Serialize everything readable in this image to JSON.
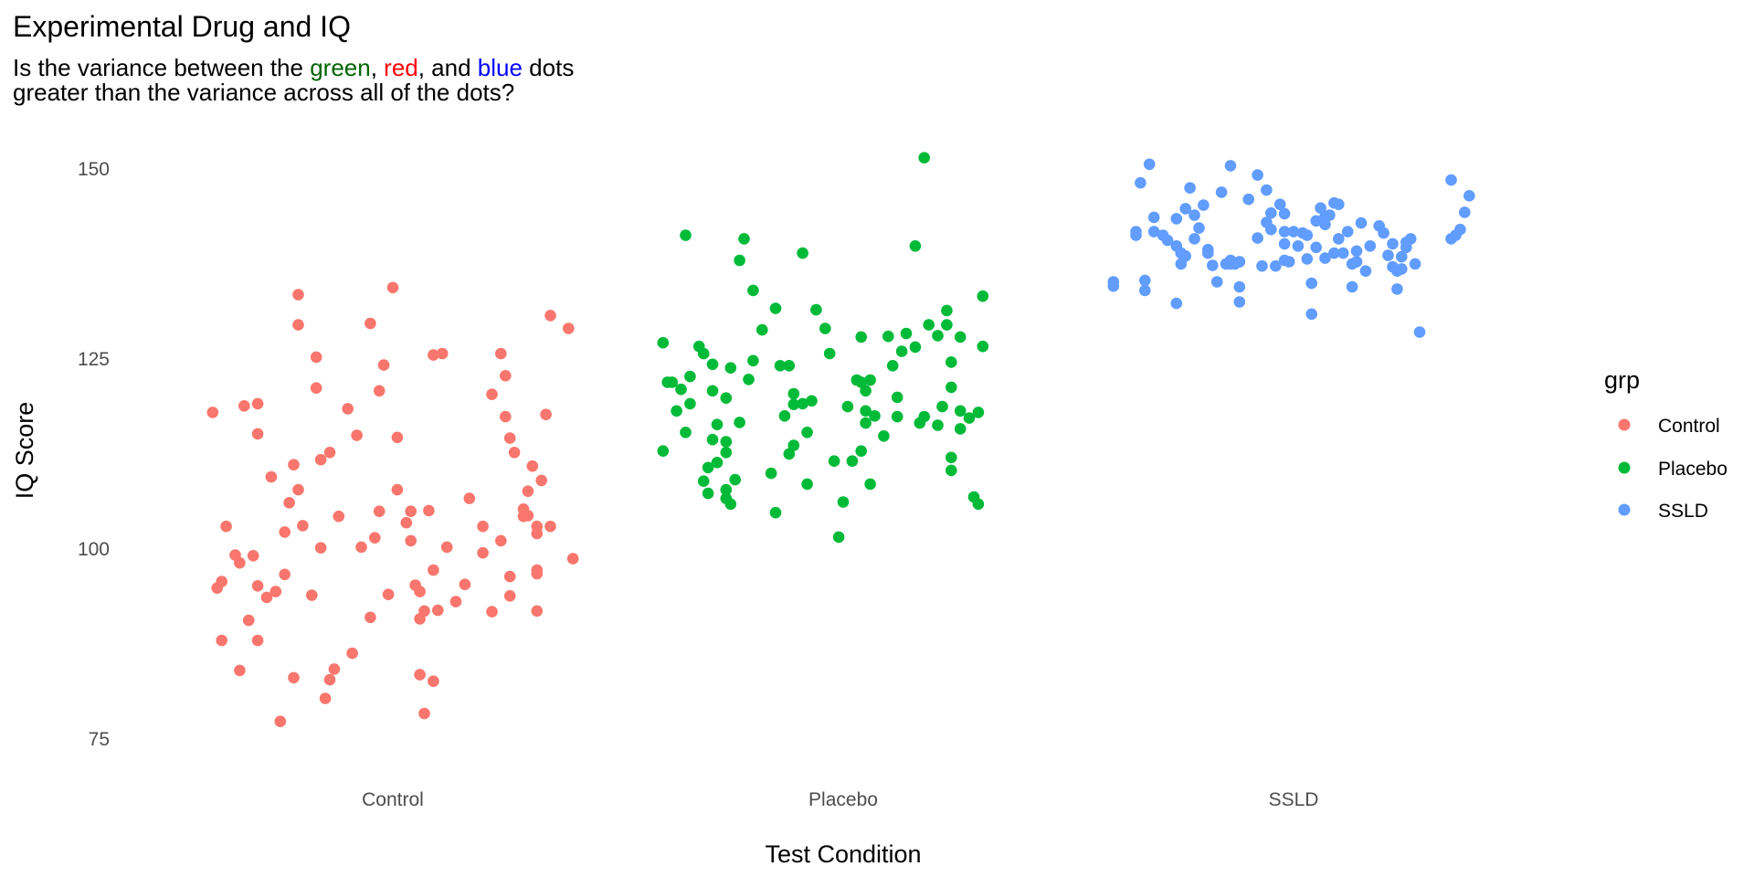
{
  "chart_data": {
    "type": "scatter",
    "title": "Experimental Drug and IQ",
    "subtitle": {
      "line1": {
        "p1": "Is the variance between the ",
        "green": "green",
        "p2": ", ",
        "red": "red",
        "p3": ", and ",
        "blue": "blue",
        "p4": " dots"
      },
      "line2": "greater than the variance across all of the dots?"
    },
    "xlabel": "Test Condition",
    "ylabel": "IQ Score",
    "categories": [
      "Control",
      "Placebo",
      "SSLD"
    ],
    "yticks": [
      "75",
      "100",
      "125",
      "150"
    ],
    "ylim": [
      70,
      153.5
    ],
    "legend": {
      "title": "grp",
      "position": "right"
    },
    "grid": false,
    "colors": {
      "Control": "#F8766D",
      "Placebo": "#00BA38",
      "SSLD": "#619CFF",
      "subtitle_green": "#006400",
      "subtitle_red": "#FF0000",
      "subtitle_blue": "#0000FF"
    },
    "series": [
      {
        "name": "Control",
        "points": [
          [
            -0.4,
            116.8
          ],
          [
            -0.39,
            92.3
          ],
          [
            -0.38,
            93.2
          ],
          [
            -0.38,
            85.0
          ],
          [
            -0.37,
            100.9
          ],
          [
            -0.35,
            96.9
          ],
          [
            -0.34,
            80.8
          ],
          [
            -0.34,
            95.8
          ],
          [
            -0.33,
            117.7
          ],
          [
            -0.32,
            87.8
          ],
          [
            -0.31,
            96.8
          ],
          [
            -0.3,
            118.0
          ],
          [
            -0.3,
            113.8
          ],
          [
            -0.3,
            92.6
          ],
          [
            -0.3,
            85.0
          ],
          [
            -0.28,
            91.0
          ],
          [
            -0.27,
            107.8
          ],
          [
            -0.26,
            91.8
          ],
          [
            -0.25,
            73.7
          ],
          [
            -0.24,
            94.2
          ],
          [
            -0.24,
            100.1
          ],
          [
            -0.23,
            104.2
          ],
          [
            -0.22,
            109.5
          ],
          [
            -0.22,
            79.8
          ],
          [
            -0.21,
            133.2
          ],
          [
            -0.21,
            129.0
          ],
          [
            -0.21,
            106.0
          ],
          [
            -0.2,
            101.0
          ],
          [
            -0.18,
            91.3
          ],
          [
            -0.17,
            120.2
          ],
          [
            -0.17,
            124.5
          ],
          [
            -0.16,
            110.2
          ],
          [
            -0.16,
            97.9
          ],
          [
            -0.15,
            76.9
          ],
          [
            -0.14,
            111.2
          ],
          [
            -0.14,
            79.5
          ],
          [
            -0.13,
            81.0
          ],
          [
            -0.12,
            102.3
          ],
          [
            -0.1,
            117.3
          ],
          [
            -0.09,
            83.2
          ],
          [
            -0.08,
            113.6
          ],
          [
            -0.07,
            98.0
          ],
          [
            -0.05,
            129.2
          ],
          [
            -0.05,
            88.2
          ],
          [
            -0.04,
            99.3
          ],
          [
            -0.03,
            103.0
          ],
          [
            -0.03,
            119.8
          ],
          [
            -0.02,
            123.4
          ],
          [
            -0.01,
            91.4
          ],
          [
            0.0,
            134.2
          ],
          [
            0.01,
            106.0
          ],
          [
            0.01,
            113.3
          ],
          [
            0.03,
            101.4
          ],
          [
            0.04,
            98.9
          ],
          [
            0.04,
            103.0
          ],
          [
            0.05,
            92.7
          ],
          [
            0.06,
            88.0
          ],
          [
            0.06,
            80.2
          ],
          [
            0.06,
            91.8
          ],
          [
            0.07,
            74.8
          ],
          [
            0.07,
            89.1
          ],
          [
            0.08,
            103.1
          ],
          [
            0.09,
            94.8
          ],
          [
            0.09,
            124.8
          ],
          [
            0.09,
            79.3
          ],
          [
            0.1,
            89.2
          ],
          [
            0.11,
            125.0
          ],
          [
            0.12,
            98.0
          ],
          [
            0.14,
            90.4
          ],
          [
            0.16,
            92.8
          ],
          [
            0.17,
            104.8
          ],
          [
            0.2,
            100.9
          ],
          [
            0.2,
            97.2
          ],
          [
            0.22,
            89.0
          ],
          [
            0.22,
            119.3
          ],
          [
            0.24,
            125.0
          ],
          [
            0.24,
            98.9
          ],
          [
            0.25,
            116.2
          ],
          [
            0.25,
            121.9
          ],
          [
            0.26,
            91.2
          ],
          [
            0.26,
            93.9
          ],
          [
            0.26,
            113.2
          ],
          [
            0.27,
            111.2
          ],
          [
            0.29,
            102.3
          ],
          [
            0.29,
            103.3
          ],
          [
            0.3,
            105.8
          ],
          [
            0.3,
            102.4
          ],
          [
            0.31,
            109.3
          ],
          [
            0.32,
            100.9
          ],
          [
            0.32,
            89.1
          ],
          [
            0.32,
            99.9
          ],
          [
            0.32,
            94.3
          ],
          [
            0.32,
            94.8
          ],
          [
            0.33,
            107.3
          ],
          [
            0.34,
            116.5
          ],
          [
            0.35,
            130.3
          ],
          [
            0.35,
            100.9
          ],
          [
            0.39,
            128.5
          ],
          [
            0.4,
            96.4
          ]
        ]
      },
      {
        "name": "Placebo",
        "points": [
          [
            -0.4,
            126.5
          ],
          [
            -0.4,
            111.4
          ],
          [
            -0.39,
            121.0
          ],
          [
            -0.38,
            121.0
          ],
          [
            -0.37,
            117.0
          ],
          [
            -0.36,
            120.0
          ],
          [
            -0.35,
            114.0
          ],
          [
            -0.35,
            141.5
          ],
          [
            -0.34,
            121.8
          ],
          [
            -0.34,
            118.0
          ],
          [
            -0.32,
            126.0
          ],
          [
            -0.31,
            107.2
          ],
          [
            -0.31,
            125.0
          ],
          [
            -0.3,
            109.1
          ],
          [
            -0.3,
            105.5
          ],
          [
            -0.29,
            123.5
          ],
          [
            -0.29,
            113.0
          ],
          [
            -0.29,
            119.8
          ],
          [
            -0.28,
            115.1
          ],
          [
            -0.28,
            109.8
          ],
          [
            -0.26,
            112.7
          ],
          [
            -0.26,
            118.8
          ],
          [
            -0.26,
            111.2
          ],
          [
            -0.26,
            106.0
          ],
          [
            -0.26,
            104.8
          ],
          [
            -0.25,
            104.0
          ],
          [
            -0.25,
            123.0
          ],
          [
            -0.24,
            107.4
          ],
          [
            -0.23,
            138.0
          ],
          [
            -0.23,
            115.4
          ],
          [
            -0.22,
            141.0
          ],
          [
            -0.21,
            121.4
          ],
          [
            -0.2,
            133.8
          ],
          [
            -0.2,
            124.0
          ],
          [
            -0.18,
            128.3
          ],
          [
            -0.16,
            108.3
          ],
          [
            -0.15,
            102.8
          ],
          [
            -0.15,
            131.3
          ],
          [
            -0.14,
            123.3
          ],
          [
            -0.13,
            116.3
          ],
          [
            -0.12,
            111.0
          ],
          [
            -0.12,
            123.3
          ],
          [
            -0.11,
            119.4
          ],
          [
            -0.11,
            117.9
          ],
          [
            -0.11,
            112.2
          ],
          [
            -0.09,
            118.0
          ],
          [
            -0.09,
            139.0
          ],
          [
            -0.08,
            106.8
          ],
          [
            -0.08,
            114.0
          ],
          [
            -0.07,
            118.4
          ],
          [
            -0.06,
            131.1
          ],
          [
            -0.04,
            128.5
          ],
          [
            -0.03,
            125.0
          ],
          [
            -0.02,
            110.0
          ],
          [
            -0.01,
            99.4
          ],
          [
            0.0,
            104.3
          ],
          [
            0.01,
            117.6
          ],
          [
            0.02,
            110.0
          ],
          [
            0.03,
            121.3
          ],
          [
            0.04,
            121.0
          ],
          [
            0.04,
            127.3
          ],
          [
            0.04,
            111.4
          ],
          [
            0.05,
            117.0
          ],
          [
            0.05,
            115.3
          ],
          [
            0.05,
            119.8
          ],
          [
            0.06,
            106.8
          ],
          [
            0.06,
            121.3
          ],
          [
            0.07,
            116.3
          ],
          [
            0.09,
            113.5
          ],
          [
            0.1,
            127.4
          ],
          [
            0.11,
            123.3
          ],
          [
            0.12,
            118.9
          ],
          [
            0.12,
            116.2
          ],
          [
            0.13,
            125.3
          ],
          [
            0.14,
            127.8
          ],
          [
            0.16,
            140.0
          ],
          [
            0.16,
            125.9
          ],
          [
            0.17,
            115.3
          ],
          [
            0.18,
            116.2
          ],
          [
            0.18,
            152.3
          ],
          [
            0.19,
            129.0
          ],
          [
            0.21,
            115.0
          ],
          [
            0.21,
            127.5
          ],
          [
            0.22,
            117.6
          ],
          [
            0.23,
            129.0
          ],
          [
            0.23,
            131.0
          ],
          [
            0.24,
            123.8
          ],
          [
            0.24,
            110.5
          ],
          [
            0.24,
            108.7
          ],
          [
            0.24,
            120.3
          ],
          [
            0.26,
            117.0
          ],
          [
            0.26,
            114.5
          ],
          [
            0.26,
            127.3
          ],
          [
            0.28,
            116.0
          ],
          [
            0.29,
            105.0
          ],
          [
            0.3,
            104.0
          ],
          [
            0.3,
            116.8
          ],
          [
            0.31,
            126.0
          ],
          [
            0.31,
            133.0
          ]
        ]
      },
      {
        "name": "SSLD",
        "points": [
          [
            -0.4,
            135.0
          ],
          [
            -0.4,
            134.4
          ],
          [
            -0.35,
            142.0
          ],
          [
            -0.35,
            141.5
          ],
          [
            -0.34,
            148.8
          ],
          [
            -0.33,
            135.2
          ],
          [
            -0.33,
            133.8
          ],
          [
            -0.32,
            151.4
          ],
          [
            -0.31,
            144.0
          ],
          [
            -0.31,
            142.0
          ],
          [
            -0.29,
            141.5
          ],
          [
            -0.28,
            140.8
          ],
          [
            -0.26,
            132.0
          ],
          [
            -0.26,
            143.8
          ],
          [
            -0.26,
            140.0
          ],
          [
            -0.25,
            137.5
          ],
          [
            -0.25,
            139.0
          ],
          [
            -0.24,
            145.2
          ],
          [
            -0.24,
            138.6
          ],
          [
            -0.23,
            148.1
          ],
          [
            -0.22,
            141.0
          ],
          [
            -0.22,
            144.3
          ],
          [
            -0.21,
            142.5
          ],
          [
            -0.2,
            145.7
          ],
          [
            -0.19,
            139.5
          ],
          [
            -0.19,
            139.0
          ],
          [
            -0.18,
            137.3
          ],
          [
            -0.17,
            135.0
          ],
          [
            -0.16,
            147.5
          ],
          [
            -0.15,
            137.5
          ],
          [
            -0.14,
            137.5
          ],
          [
            -0.14,
            138.0
          ],
          [
            -0.14,
            151.2
          ],
          [
            -0.13,
            137.5
          ],
          [
            -0.12,
            137.8
          ],
          [
            -0.12,
            132.2
          ],
          [
            -0.12,
            134.3
          ],
          [
            -0.12,
            137.8
          ],
          [
            -0.1,
            146.5
          ],
          [
            -0.08,
            141.1
          ],
          [
            -0.08,
            149.9
          ],
          [
            -0.07,
            137.2
          ],
          [
            -0.06,
            143.3
          ],
          [
            -0.06,
            147.8
          ],
          [
            -0.05,
            144.6
          ],
          [
            -0.05,
            142.3
          ],
          [
            -0.04,
            137.2
          ],
          [
            -0.03,
            145.8
          ],
          [
            -0.02,
            138.0
          ],
          [
            -0.02,
            140.3
          ],
          [
            -0.02,
            142.0
          ],
          [
            -0.02,
            144.5
          ],
          [
            -0.01,
            137.8
          ],
          [
            0.0,
            142.0
          ],
          [
            0.01,
            140.0
          ],
          [
            0.02,
            141.8
          ],
          [
            0.03,
            141.5
          ],
          [
            0.03,
            138.2
          ],
          [
            0.04,
            130.5
          ],
          [
            0.04,
            134.8
          ],
          [
            0.05,
            139.8
          ],
          [
            0.05,
            143.5
          ],
          [
            0.06,
            145.3
          ],
          [
            0.07,
            138.3
          ],
          [
            0.07,
            143.0
          ],
          [
            0.07,
            144.1
          ],
          [
            0.08,
            144.3
          ],
          [
            0.09,
            146.0
          ],
          [
            0.09,
            139.0
          ],
          [
            0.1,
            145.8
          ],
          [
            0.1,
            141.0
          ],
          [
            0.11,
            139.0
          ],
          [
            0.12,
            142.0
          ],
          [
            0.13,
            137.5
          ],
          [
            0.13,
            134.3
          ],
          [
            0.14,
            137.8
          ],
          [
            0.14,
            139.3
          ],
          [
            0.15,
            143.2
          ],
          [
            0.16,
            136.5
          ],
          [
            0.17,
            140.0
          ],
          [
            0.19,
            142.8
          ],
          [
            0.2,
            141.8
          ],
          [
            0.21,
            138.7
          ],
          [
            0.22,
            137.1
          ],
          [
            0.22,
            140.3
          ],
          [
            0.23,
            134.0
          ],
          [
            0.23,
            136.5
          ],
          [
            0.24,
            136.8
          ],
          [
            0.24,
            138.5
          ],
          [
            0.25,
            140.5
          ],
          [
            0.25,
            139.8
          ],
          [
            0.26,
            141.0
          ],
          [
            0.27,
            137.5
          ],
          [
            0.28,
            128.0
          ],
          [
            0.35,
            149.2
          ],
          [
            0.35,
            141.0
          ],
          [
            0.36,
            141.5
          ],
          [
            0.37,
            142.3
          ],
          [
            0.38,
            144.7
          ],
          [
            0.39,
            147.0
          ]
        ]
      }
    ]
  }
}
